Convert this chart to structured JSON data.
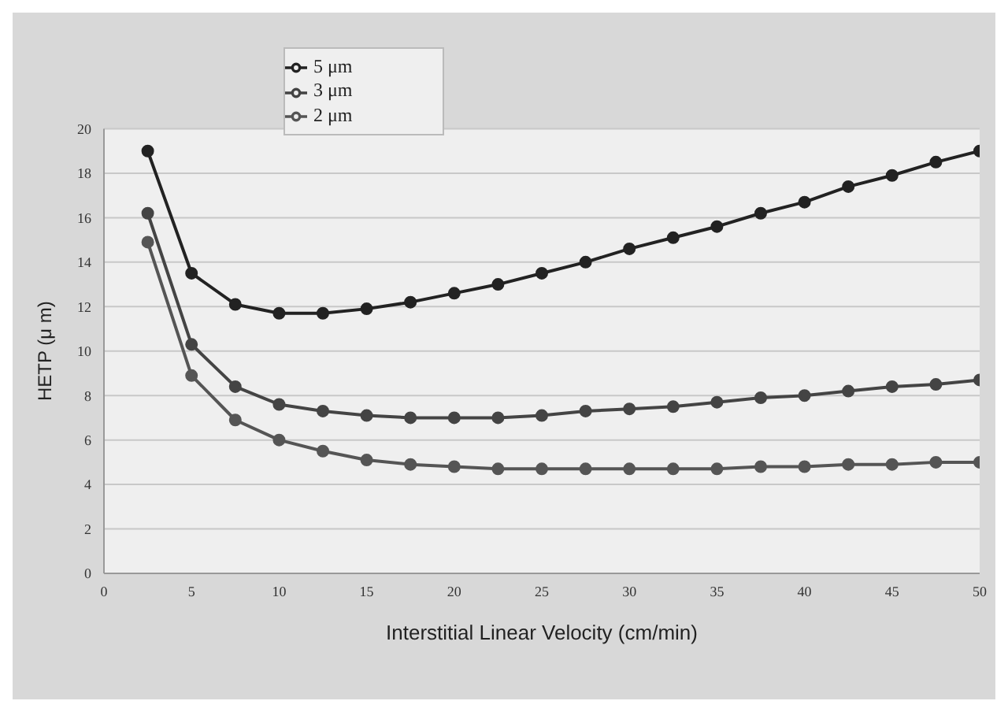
{
  "chart_data": {
    "type": "line",
    "xlabel": "Interstitial Linear Velocity (cm/min)",
    "ylabel": "HETP (μ m)",
    "x": [
      2.5,
      5,
      7.5,
      10,
      12.5,
      15,
      17.5,
      20,
      22.5,
      25,
      27.5,
      30,
      32.5,
      35,
      37.5,
      40,
      42.5,
      45,
      47.5,
      50
    ],
    "series": [
      {
        "name": "5 μm",
        "color": "#222222",
        "values": [
          19.0,
          13.5,
          12.1,
          11.7,
          11.7,
          11.9,
          12.2,
          12.6,
          13.0,
          13.5,
          14.0,
          14.6,
          15.1,
          15.6,
          16.2,
          16.7,
          17.4,
          17.9,
          18.5,
          19.0
        ]
      },
      {
        "name": "3 μm",
        "color": "#444444",
        "values": [
          16.2,
          10.3,
          8.4,
          7.6,
          7.3,
          7.1,
          7.0,
          7.0,
          7.0,
          7.1,
          7.3,
          7.4,
          7.5,
          7.7,
          7.9,
          8.0,
          8.2,
          8.4,
          8.5,
          8.7
        ]
      },
      {
        "name": "2 μm",
        "color": "#555555",
        "values": [
          14.9,
          8.9,
          6.9,
          6.0,
          5.5,
          5.1,
          4.9,
          4.8,
          4.7,
          4.7,
          4.7,
          4.7,
          4.7,
          4.7,
          4.8,
          4.8,
          4.9,
          4.9,
          5.0,
          5.0
        ]
      }
    ],
    "xlim": [
      0,
      50
    ],
    "xticks": [
      0,
      5,
      10,
      15,
      20,
      25,
      30,
      35,
      40,
      45,
      50
    ],
    "ylim": [
      0,
      20
    ],
    "yticks": [
      0,
      2,
      4,
      6,
      8,
      10,
      12,
      14,
      16,
      18,
      20
    ],
    "grid": "y",
    "legend": "top left",
    "marker": "circle",
    "line_style": "solid"
  }
}
